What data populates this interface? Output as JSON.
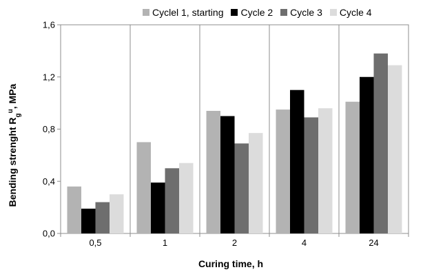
{
  "chart_data": {
    "type": "bar",
    "xlabel": "Curing time, h",
    "ylabel": "Bending strenght R",
    "ylabel_sub": "g",
    "ylabel_sup": "u",
    "ylabel_tail": ", MPa",
    "categories": [
      "0,5",
      "1",
      "2",
      "4",
      "24"
    ],
    "yticks": [
      "0,0",
      "0,4",
      "0,8",
      "1,2",
      "1,6"
    ],
    "ylim": [
      0,
      1.6
    ],
    "grid": "vertical category separators",
    "legend_position": "top",
    "series": [
      {
        "name": "Cyclel 1, starting",
        "color": "#b3b3b3",
        "values": [
          0.36,
          0.7,
          0.94,
          0.95,
          1.01
        ]
      },
      {
        "name": "Cycle 2",
        "color": "#000000",
        "values": [
          0.19,
          0.39,
          0.9,
          1.1,
          1.2
        ]
      },
      {
        "name": "Cycle 3",
        "color": "#6e6e6e",
        "values": [
          0.24,
          0.5,
          0.69,
          0.89,
          1.38
        ]
      },
      {
        "name": "Cycle 4",
        "color": "#dcdcdc",
        "values": [
          0.3,
          0.54,
          0.77,
          0.96,
          1.29
        ]
      }
    ]
  }
}
